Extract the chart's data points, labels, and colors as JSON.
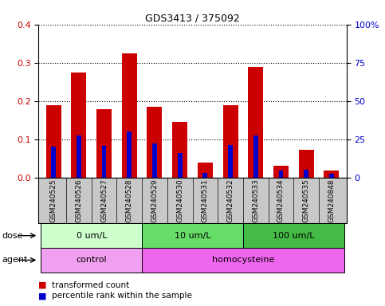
{
  "title": "GDS3413 / 375092",
  "samples": [
    "GSM240525",
    "GSM240526",
    "GSM240527",
    "GSM240528",
    "GSM240529",
    "GSM240530",
    "GSM240531",
    "GSM240532",
    "GSM240533",
    "GSM240534",
    "GSM240535",
    "GSM240848"
  ],
  "red_values": [
    0.19,
    0.275,
    0.178,
    0.325,
    0.185,
    0.145,
    0.038,
    0.188,
    0.29,
    0.03,
    0.072,
    0.018
  ],
  "blue_values": [
    0.08,
    0.11,
    0.083,
    0.12,
    0.088,
    0.065,
    0.012,
    0.085,
    0.11,
    0.018,
    0.02,
    0.01
  ],
  "ylim_left": [
    0,
    0.4
  ],
  "ylim_right": [
    0,
    100
  ],
  "yticks_left": [
    0,
    0.1,
    0.2,
    0.3,
    0.4
  ],
  "yticks_right": [
    0,
    25,
    50,
    75,
    100
  ],
  "ytick_labels_right": [
    "0",
    "25",
    "50",
    "75",
    "100%"
  ],
  "dose_groups": [
    {
      "label": "0 um/L",
      "start": 0,
      "end": 4,
      "color": "#ccffcc"
    },
    {
      "label": "10 um/L",
      "start": 4,
      "end": 8,
      "color": "#66dd66"
    },
    {
      "label": "100 um/L",
      "start": 8,
      "end": 12,
      "color": "#44bb44"
    }
  ],
  "agent_groups": [
    {
      "label": "control",
      "start": 0,
      "end": 4,
      "color": "#f0a0f0"
    },
    {
      "label": "homocysteine",
      "start": 4,
      "end": 12,
      "color": "#ee66ee"
    }
  ],
  "dose_label": "dose",
  "agent_label": "agent",
  "bar_color_red": "#cc0000",
  "bar_color_blue": "#0000cc",
  "bar_width": 0.6,
  "blue_bar_width": 0.18,
  "legend_red": "transformed count",
  "legend_blue": "percentile rank within the sample",
  "tick_label_color_left": "#cc0000",
  "tick_label_color_right": "#0000cc",
  "xtick_bg_color": "#c8c8c8",
  "figure_width": 4.83,
  "figure_height": 3.84,
  "dpi": 100
}
